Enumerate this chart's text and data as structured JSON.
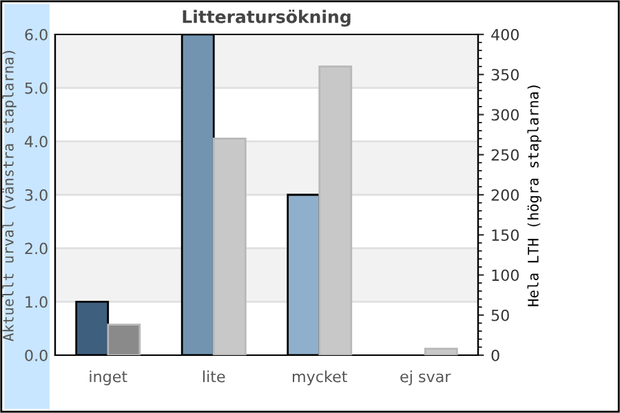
{
  "chart_data": {
    "type": "bar",
    "title": "Litteratursökning",
    "ylabel": "Aktuellt urval (vänstra staplarna)",
    "y2label": "Hela LTH (högra staplarna)",
    "categories": [
      "inget",
      "lite",
      "mycket",
      "ej svar"
    ],
    "series": [
      {
        "colors": [
          "#3e5f7e",
          "#7294b0",
          "#8fb0cc",
          "#8fb0cc"
        ],
        "values": [
          1,
          6,
          3,
          0
        ]
      },
      {
        "colors": [
          "#8a8a8a",
          "#c8c8c8",
          "#c8c8c8",
          "#c8c8c8"
        ],
        "values": [
          38,
          270,
          360,
          8
        ],
        "axis": "y2"
      }
    ],
    "ylim": [
      0,
      6
    ],
    "yticks": [
      {
        "value": 0,
        "label": "0.0"
      },
      {
        "value": 1,
        "label": "1.0"
      },
      {
        "value": 2,
        "label": "2.0"
      },
      {
        "value": 3,
        "label": "3.0"
      },
      {
        "value": 4,
        "label": "4.0"
      },
      {
        "value": 5,
        "label": "5.0"
      },
      {
        "value": 6,
        "label": "6.0"
      }
    ],
    "y2lim": [
      0,
      400
    ],
    "y2ticks": [
      0,
      50,
      100,
      150,
      200,
      250,
      300,
      350,
      400
    ],
    "bands": [
      {
        "axis": "y",
        "from": 1,
        "to": 2,
        "color": "#f2f2f2"
      },
      {
        "axis": "y",
        "from": 3,
        "to": 4,
        "color": "#f2f2f2"
      },
      {
        "axis": "y",
        "from": 5,
        "to": 6,
        "color": "#f2f2f2"
      }
    ],
    "grid": "y"
  }
}
